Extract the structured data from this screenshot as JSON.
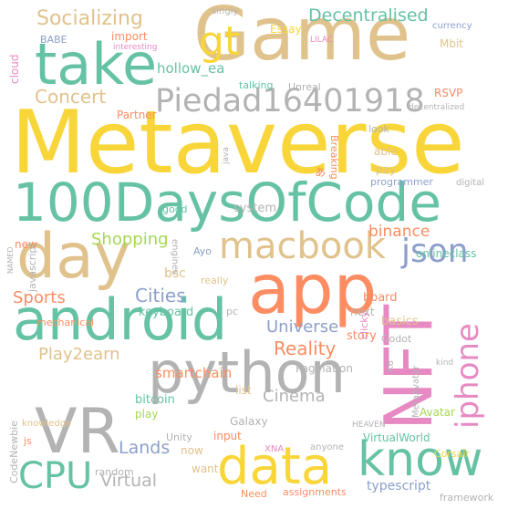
{
  "colors": {
    "gold": "#f8d63a",
    "tan": "#e0c28c",
    "teal": "#66c2a5",
    "gray": "#b3b3b3",
    "pink": "#e78ac3",
    "orange": "#fc8d62",
    "blue": "#8da0cb",
    "lime": "#a6d854"
  },
  "words": {
    "metaverse": "Metaverse",
    "game": "Game",
    "take": "take",
    "gt": "gt",
    "days_of_code": "100DaysOfCode",
    "day": "day",
    "app": "app",
    "macbook": "macbook",
    "android": "android",
    "python": "python",
    "nft": "NFT",
    "json": "json",
    "iphone": "iphone",
    "vr": "VR",
    "data": "data",
    "know": "know",
    "cpu": "CPU",
    "piedad": "Piedad16401918",
    "socializing": "Socializing",
    "decentralised": "Decentralised",
    "concert": "Concert",
    "shopping": "Shopping",
    "cities": "Cities",
    "sports": "Sports",
    "reality": "Reality",
    "universe": "Universe",
    "binance": "binance",
    "play2earn": "Play2earn",
    "lands": "Lands",
    "cinema": "Cinema",
    "virtual": "Virtual",
    "smartchain": "smartchain",
    "hollow_ea": "hollow_ea",
    "import": "import",
    "babe": "BABE",
    "essay": "Essay",
    "mbit": "Mbit",
    "rsvp": "RSVP",
    "system": "system",
    "bsc": "bsc",
    "keyboard": "keyboard",
    "onlineclass": "onlineclass",
    "board": "board",
    "basics": "basics",
    "story": "story",
    "bitcoin": "bitcoin",
    "play": "play",
    "galaxy": "Galaxy",
    "input": "input",
    "typescript": "typescript",
    "virtualworld": "VirtualWorld",
    "pagination": "Pagination",
    "avatar": "Avatar",
    "metaavatar": "MetaAvatar",
    "unity": "Unity",
    "heaven": "HEAVEN",
    "corsair": "Corsair",
    "framework": "framework",
    "assignments": "assignments",
    "need": "Need",
    "want": "want",
    "random": "random",
    "codenewbie": "CodeNewbie",
    "js": "js",
    "xna": "XNA",
    "anyone": "anyone",
    "now": "now",
    "knowledge": "knowledge",
    "list": "list",
    "mechanical": "mechanical",
    "new": "new",
    "javascript": "javascript",
    "named": "NAMED",
    "engines": "engines",
    "good": "good",
    "java": "java",
    "partner": "Partner",
    "look": "look",
    "able": "able",
    "pay": "pay",
    "programmer": "programmer",
    "digital": "digital",
    "decentralized": "decentralized",
    "unreal": "Unreal",
    "talking": "talking",
    "breaking": "Breaking",
    "lilac": "LILAC",
    "interesting": "interesting",
    "singly": "singly",
    "currency": "currency",
    "cloud": "cloud",
    "ayo": "Ayo",
    "really": "really",
    "pc": "pc",
    "next": "next",
    "godot": "Godot",
    "k6": "K6",
    "clicky": "clicky",
    "kind": "kind",
    "glyph": "ぁ"
  }
}
